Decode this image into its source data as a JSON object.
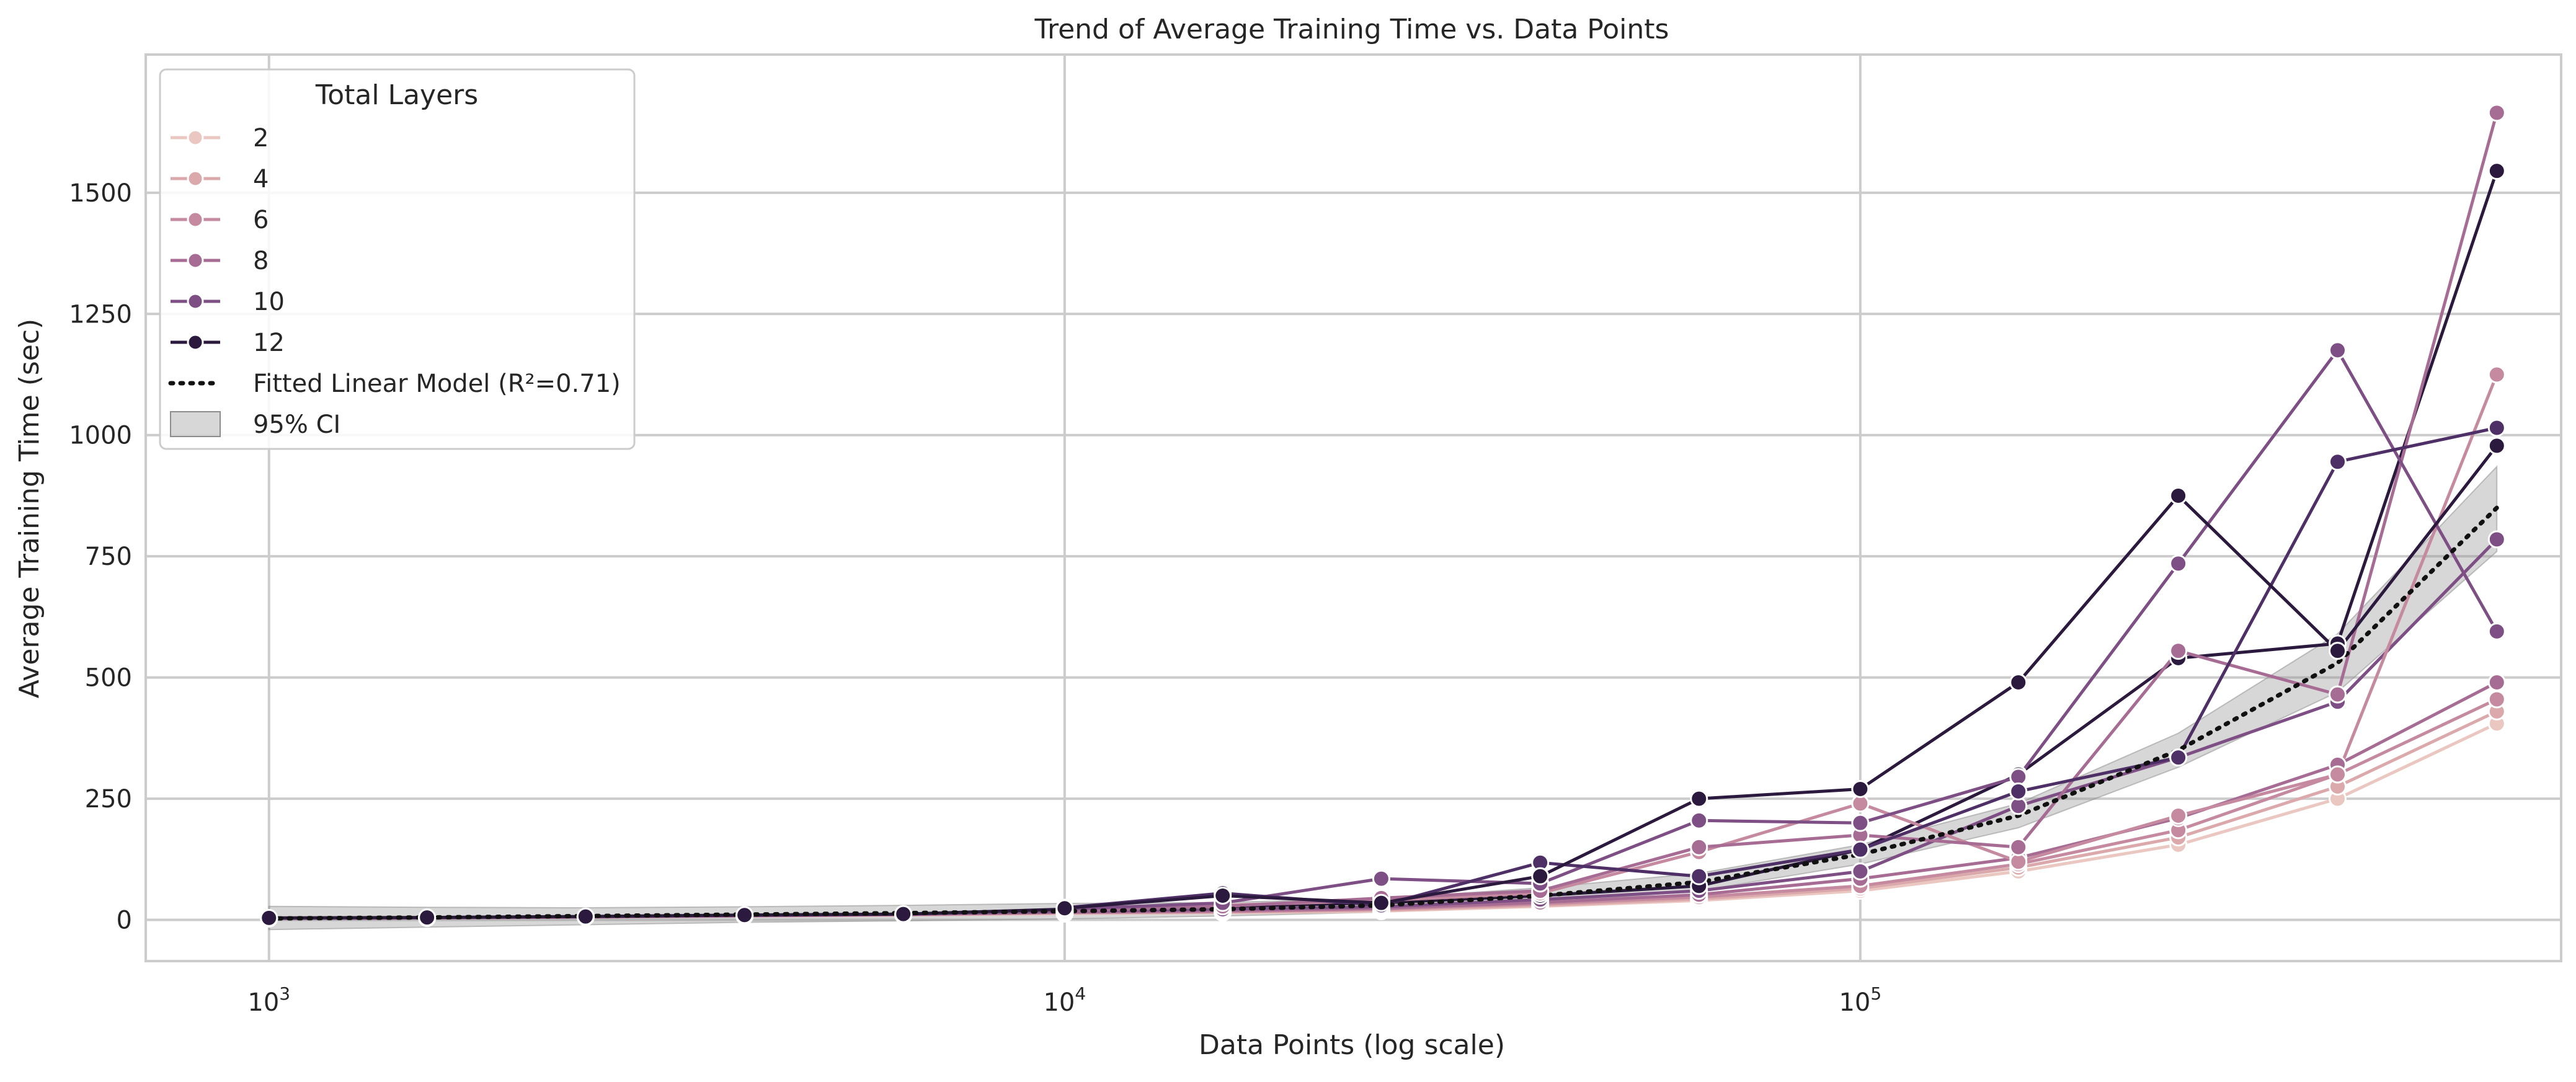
{
  "chart_data": {
    "type": "line",
    "title": "Trend of Average Training Time vs. Data Points",
    "xlabel": "Data Points (log scale)",
    "ylabel": "Average Training Time (sec)",
    "x_scale": "log",
    "xlim": [
      700,
      760000
    ],
    "ylim": [
      -85,
      1785
    ],
    "x_ticks": [
      1000,
      10000,
      100000
    ],
    "x_tick_labels": [
      {
        "base": "10",
        "exp": "3"
      },
      {
        "base": "10",
        "exp": "4"
      },
      {
        "base": "10",
        "exp": "5"
      }
    ],
    "y_ticks": [
      0,
      250,
      500,
      750,
      1000,
      1250,
      1500
    ],
    "y_tick_labels": [
      "0",
      "250",
      "500",
      "750",
      "1000",
      "1250",
      "1500"
    ],
    "grid": true,
    "legend": {
      "title": "Total Layers",
      "placement": "top-left"
    },
    "x": [
      1000,
      1580,
      2500,
      3960,
      6270,
      10000,
      15800,
      25000,
      39600,
      62700,
      100000,
      158000,
      251000,
      398000,
      631000
    ],
    "series": [
      {
        "name": "2",
        "color": "#ebc7c1",
        "values": [
          3,
          4,
          6,
          8,
          10,
          13,
          15,
          18,
          28,
          40,
          60,
          100,
          155,
          250,
          405
        ]
      },
      {
        "name": "4",
        "color": "#dba9ab",
        "values": [
          3,
          4,
          6,
          8,
          10,
          14,
          16,
          20,
          30,
          43,
          65,
          108,
          170,
          275,
          430
        ]
      },
      {
        "name": "6",
        "color": "#c58a9f",
        "values": [
          3,
          4,
          6,
          8,
          11,
          15,
          17,
          22,
          33,
          47,
          70,
          115,
          185,
          300,
          455
        ]
      },
      {
        "name": "8",
        "color": "#a76c94",
        "values": [
          3,
          4,
          6,
          9,
          11,
          16,
          19,
          24,
          36,
          52,
          85,
          128,
          210,
          320,
          490
        ]
      },
      {
        "name": "10",
        "color": "#7e4f84",
        "values": [
          3,
          4,
          7,
          9,
          12,
          18,
          22,
          27,
          42,
          60,
          100,
          235,
          335,
          450,
          785
        ]
      },
      {
        "name": "12",
        "color": "#2b1a3d",
        "values": [
          4,
          5,
          7,
          10,
          12,
          22,
          28,
          35,
          50,
          70,
          145,
          300,
          540,
          570,
          1545
        ]
      }
    ],
    "extra_lines": [
      {
        "color": "#c58a9f",
        "x": [
          10000,
          15800,
          25000,
          39600,
          62700,
          100000,
          158000,
          251000,
          398000,
          631000
        ],
        "values": [
          20,
          30,
          40,
          55,
          140,
          240,
          120,
          215,
          300,
          1125
        ]
      },
      {
        "color": "#a76c94",
        "x": [
          10000,
          15800,
          25000,
          39600,
          62700,
          100000,
          158000,
          251000,
          398000,
          631000
        ],
        "values": [
          18,
          28,
          45,
          60,
          150,
          175,
          150,
          555,
          465,
          1665
        ]
      },
      {
        "color": "#7e4f84",
        "x": [
          10000,
          15800,
          25000,
          39600,
          62700,
          100000,
          158000,
          251000,
          398000,
          631000
        ],
        "values": [
          22,
          35,
          85,
          75,
          205,
          200,
          295,
          735,
          1175,
          595
        ]
      },
      {
        "color": "#4e2f66",
        "x": [
          10000,
          15800,
          25000,
          39600,
          62700,
          100000,
          158000,
          251000,
          398000,
          631000
        ],
        "values": [
          25,
          55,
          30,
          118,
          90,
          145,
          265,
          335,
          945,
          1015
        ]
      },
      {
        "color": "#2b1a3d",
        "x": [
          10000,
          15800,
          25000,
          39600,
          62700,
          100000,
          158000,
          251000,
          398000,
          631000
        ],
        "values": [
          24,
          50,
          35,
          90,
          250,
          270,
          490,
          875,
          555,
          978
        ]
      }
    ],
    "fit": {
      "name": "Fitted Linear Model (R²=0.71)",
      "ci_name": "95% CI",
      "x": [
        1000,
        1580,
        2500,
        3960,
        6270,
        10000,
        15800,
        25000,
        39600,
        62700,
        100000,
        158000,
        251000,
        398000,
        631000
      ],
      "values": [
        3,
        5,
        8,
        11,
        14,
        18,
        22,
        30,
        50,
        78,
        135,
        215,
        350,
        530,
        850
      ],
      "ci_low": [
        -20,
        -15,
        -10,
        -5,
        -2,
        2,
        8,
        16,
        34,
        60,
        115,
        190,
        315,
        470,
        760
      ],
      "ci_high": [
        28,
        26,
        25,
        27,
        30,
        34,
        36,
        44,
        66,
        96,
        155,
        240,
        385,
        590,
        935
      ]
    }
  }
}
